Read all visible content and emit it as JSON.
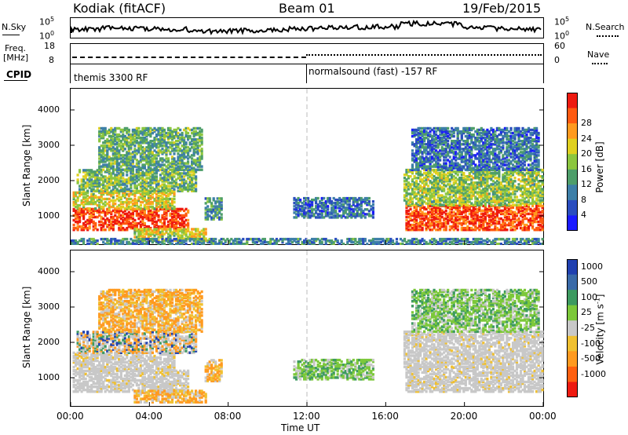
{
  "header": {
    "station": "Kodiak (fitACF)",
    "beam": "Beam 01",
    "date": "19/Feb/2015"
  },
  "noise_panel": {
    "left_label": "N.Sky",
    "right_label": "N.Search",
    "left_ticks": [
      "10^5",
      "10^0"
    ],
    "right_ticks": [
      "10^5",
      "10^0"
    ]
  },
  "freq_panel": {
    "left_label_1": "Freq.",
    "left_label_2": "[MHz]",
    "right_label": "Nave",
    "left_ticks": [
      "18",
      "8"
    ],
    "right_ticks": [
      "60",
      "0"
    ]
  },
  "cpid_panel": {
    "label": "CPID",
    "modes": [
      "themis 3300 RF",
      "normalsound (fast) -157 RF"
    ]
  },
  "chart_data": [
    {
      "type": "heatmap",
      "name": "power",
      "ylabel": "Slant Range [km]",
      "yticks": [
        1000,
        2000,
        3000,
        4000
      ],
      "ylim": [
        200,
        4600
      ],
      "xlabel": "Time UT",
      "xticks": [
        "00:00",
        "04:00",
        "08:00",
        "12:00",
        "16:00",
        "20:00",
        "00:00"
      ],
      "xlim_hours": [
        0,
        24
      ],
      "colorbar_label": "Power [dB]",
      "colorbar_ticks": [
        4,
        8,
        12,
        16,
        20,
        24,
        28
      ],
      "colorbar_colors": [
        "#1a1aff",
        "#2a4dbf",
        "#3d7fa8",
        "#4e9e6a",
        "#8cc63f",
        "#e0d020",
        "#ff9a1f",
        "#ff5a10",
        "#ee1a10"
      ],
      "regions": [
        {
          "t0": 0.1,
          "t1": 5.9,
          "r0": 600,
          "r1": 1200,
          "level": 0.88
        },
        {
          "t0": 0.1,
          "t1": 5.2,
          "r0": 1200,
          "r1": 1700,
          "level": 0.6
        },
        {
          "t0": 0.3,
          "t1": 6.3,
          "r0": 1700,
          "r1": 2300,
          "level": 0.45
        },
        {
          "t0": 1.4,
          "t1": 6.6,
          "r0": 2300,
          "r1": 3500,
          "level": 0.4
        },
        {
          "t0": 3.2,
          "t1": 6.8,
          "r0": 300,
          "r1": 650,
          "level": 0.6
        },
        {
          "t0": 6.8,
          "t1": 7.6,
          "r0": 900,
          "r1": 1500,
          "level": 0.35
        },
        {
          "t0": 11.3,
          "t1": 15.3,
          "r0": 950,
          "r1": 1500,
          "level": 0.25
        },
        {
          "t0": 17.0,
          "t1": 24.0,
          "r0": 600,
          "r1": 1300,
          "level": 0.88
        },
        {
          "t0": 16.9,
          "t1": 24.0,
          "r0": 1300,
          "r1": 2300,
          "level": 0.5
        },
        {
          "t0": 17.3,
          "t1": 23.8,
          "r0": 2300,
          "r1": 3500,
          "level": 0.25
        },
        {
          "t0": 0.0,
          "t1": 24.0,
          "r0": 200,
          "r1": 350,
          "level": 0.3
        }
      ]
    },
    {
      "type": "heatmap",
      "name": "velocity",
      "ylabel": "Slant Range [km]",
      "yticks": [
        1000,
        2000,
        3000,
        4000
      ],
      "ylim": [
        200,
        4600
      ],
      "xlabel": "Time UT",
      "xticks": [
        "00:00",
        "04:00",
        "08:00",
        "12:00",
        "16:00",
        "20:00",
        "00:00"
      ],
      "xlim_hours": [
        0,
        24
      ],
      "colorbar_label": "Velocity [m s^-1]",
      "colorbar_ticks": [
        1000,
        500,
        100,
        25,
        -25,
        -100,
        -500,
        -1000
      ],
      "colorbar_colors": [
        "#2040b0",
        "#3a6aa8",
        "#3d9a60",
        "#7cc83a",
        "#c8c8c8",
        "#f0c030",
        "#ff9a20",
        "#ff6010",
        "#ee1a10"
      ],
      "regions": [
        {
          "t0": 0.1,
          "t1": 5.9,
          "r0": 600,
          "r1": 1200,
          "class": "ground"
        },
        {
          "t0": 0.1,
          "t1": 5.2,
          "r0": 1200,
          "r1": 1700,
          "class": "ground"
        },
        {
          "t0": 0.3,
          "t1": 6.3,
          "r0": 1700,
          "r1": 2300,
          "class": "mixed"
        },
        {
          "t0": 1.4,
          "t1": 6.6,
          "r0": 2300,
          "r1": 3500,
          "class": "negative"
        },
        {
          "t0": 3.2,
          "t1": 6.8,
          "r0": 300,
          "r1": 650,
          "class": "negative"
        },
        {
          "t0": 6.8,
          "t1": 7.6,
          "r0": 900,
          "r1": 1500,
          "class": "negative"
        },
        {
          "t0": 11.3,
          "t1": 15.3,
          "r0": 950,
          "r1": 1500,
          "class": "positive"
        },
        {
          "t0": 17.0,
          "t1": 24.0,
          "r0": 600,
          "r1": 1300,
          "class": "ground"
        },
        {
          "t0": 16.9,
          "t1": 24.0,
          "r0": 1300,
          "r1": 2300,
          "class": "ground"
        },
        {
          "t0": 17.3,
          "t1": 23.8,
          "r0": 2300,
          "r1": 3500,
          "class": "positive"
        }
      ]
    }
  ]
}
